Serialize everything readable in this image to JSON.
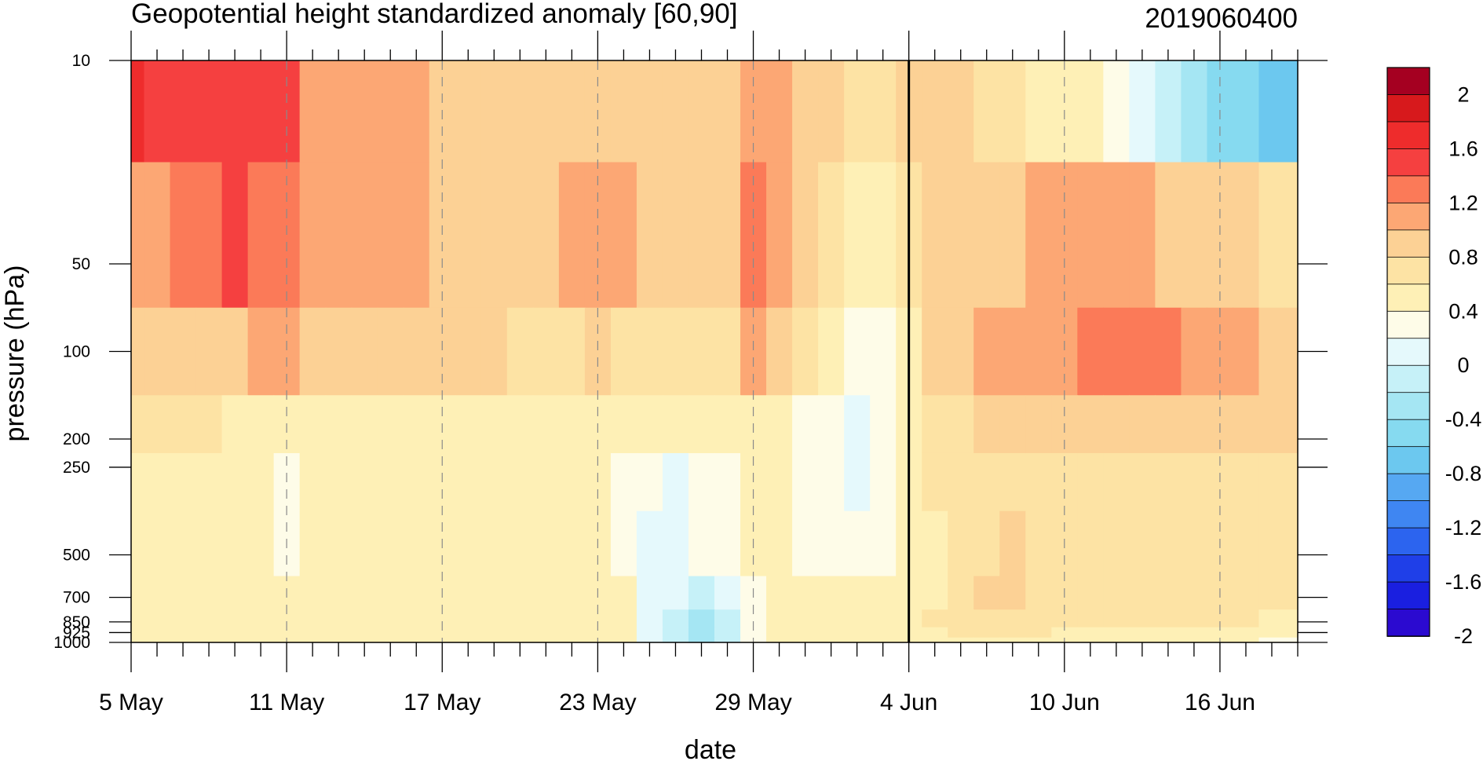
{
  "chart_data": {
    "type": "heatmap",
    "title": "Geopotential height standardized anomaly [60,90]",
    "subtitle": "2019060400",
    "xlabel": "date",
    "ylabel": "pressure (hPa)",
    "x_tick_labels": [
      "5 May",
      "11 May",
      "17 May",
      "23 May",
      "29 May",
      "4 Jun",
      "10 Jun",
      "16 Jun"
    ],
    "x_tick_days": [
      0,
      6,
      12,
      18,
      24,
      30,
      36,
      42
    ],
    "x_range_days": [
      0,
      45
    ],
    "y_levels_hPa": [
      10,
      50,
      100,
      200,
      250,
      500,
      700,
      850,
      925,
      1000
    ],
    "y_tick_labels": [
      "10",
      "50",
      "100",
      "200",
      "250",
      "500",
      "700",
      "850",
      "925",
      "1000"
    ],
    "y_range_hPa": [
      1000,
      10
    ],
    "y_scale": "log",
    "vertical_marker": "4 Jun",
    "dashed_gridlines_at": [
      "11 May",
      "17 May",
      "23 May",
      "29 May",
      "10 Jun",
      "16 Jun"
    ],
    "colorbar": {
      "tick_labels": [
        "2",
        "1.6",
        "1.2",
        "0.8",
        "0.4",
        "0",
        "-0.4",
        "-0.8",
        "-1.2",
        "-1.6",
        "-2"
      ],
      "colors": [
        "#a50021",
        "#d7191c",
        "#ee2c2c",
        "#f54040",
        "#fb7a58",
        "#fca774",
        "#fcd195",
        "#fde3a4",
        "#fef0b6",
        "#fefce8",
        "#e5f9fc",
        "#c6f1f8",
        "#a5e6f3",
        "#86daf0",
        "#6cc8ef",
        "#56a8f2",
        "#3f86f2",
        "#2c64ef",
        "#1f3fe8",
        "#1a1fe0",
        "#2b0ad0"
      ]
    },
    "grid": [
      {
        "level": 10,
        "values": [
          1.8,
          1.5,
          1.5,
          1.5,
          1.5,
          1.5,
          1.5,
          1.2,
          1.2,
          1.2,
          1.2,
          1.2,
          0.9,
          0.9,
          0.9,
          0.9,
          0.9,
          0.9,
          0.9,
          0.9,
          0.9,
          0.9,
          0.9,
          0.9,
          1.2,
          1.2,
          0.9,
          0.9,
          0.7,
          0.7,
          0.9,
          0.9,
          0.9,
          0.7,
          0.7,
          0.5,
          0.5,
          0.5,
          0.3,
          0.1,
          -0.1,
          -0.3,
          -0.4,
          -0.5,
          -0.6,
          -0.7
        ]
      },
      {
        "level": 50,
        "values": [
          1.2,
          1.2,
          1.3,
          1.4,
          1.5,
          1.4,
          1.3,
          1.2,
          1.2,
          1.2,
          1.2,
          1.2,
          1.0,
          0.9,
          0.9,
          0.9,
          0.9,
          1.1,
          1.2,
          1.1,
          0.9,
          0.9,
          0.9,
          0.9,
          1.3,
          1.2,
          0.9,
          0.7,
          0.6,
          0.5,
          0.7,
          0.9,
          0.9,
          0.9,
          1.0,
          1.1,
          1.1,
          1.1,
          1.1,
          1.1,
          1.0,
          1.0,
          0.9,
          0.9,
          0.8,
          0.7
        ]
      },
      {
        "level": 100,
        "values": [
          0.9,
          0.9,
          1.0,
          1.0,
          1.0,
          1.1,
          1.1,
          1.0,
          0.9,
          0.9,
          0.9,
          0.9,
          0.9,
          0.9,
          0.9,
          0.8,
          0.8,
          0.8,
          0.9,
          0.8,
          0.7,
          0.7,
          0.7,
          0.8,
          1.1,
          0.9,
          0.7,
          0.5,
          0.3,
          0.3,
          0.6,
          0.9,
          1.0,
          1.1,
          1.2,
          1.2,
          1.2,
          1.3,
          1.3,
          1.4,
          1.3,
          1.2,
          1.2,
          1.1,
          1.0,
          1.0
        ]
      },
      {
        "level": 200,
        "values": [
          0.7,
          0.7,
          0.7,
          0.7,
          0.6,
          0.6,
          0.6,
          0.6,
          0.6,
          0.6,
          0.6,
          0.6,
          0.6,
          0.6,
          0.6,
          0.6,
          0.6,
          0.6,
          0.6,
          0.5,
          0.5,
          0.5,
          0.5,
          0.5,
          0.6,
          0.6,
          0.4,
          0.3,
          0.2,
          0.3,
          0.5,
          0.7,
          0.8,
          0.9,
          1.0,
          1.0,
          1.0,
          1.0,
          1.0,
          1.0,
          0.9,
          0.9,
          0.9,
          0.9,
          0.9,
          0.9
        ]
      },
      {
        "level": 250,
        "values": [
          0.5,
          0.5,
          0.6,
          0.6,
          0.6,
          0.6,
          0.3,
          0.6,
          0.6,
          0.6,
          0.6,
          0.6,
          0.6,
          0.6,
          0.6,
          0.6,
          0.6,
          0.6,
          0.5,
          0.4,
          0.3,
          0.2,
          0.3,
          0.4,
          0.6,
          0.6,
          0.4,
          0.3,
          0.1,
          0.3,
          0.5,
          0.7,
          0.8,
          0.8,
          0.8,
          0.7,
          0.7,
          0.7,
          0.7,
          0.7,
          0.7,
          0.7,
          0.7,
          0.7,
          0.7,
          0.7
        ]
      },
      {
        "level": 500,
        "values": [
          0.5,
          0.5,
          0.5,
          0.6,
          0.5,
          0.5,
          0.4,
          0.5,
          0.6,
          0.6,
          0.6,
          0.6,
          0.5,
          0.5,
          0.6,
          0.6,
          0.6,
          0.5,
          0.5,
          0.4,
          0.2,
          0.2,
          0.3,
          0.4,
          0.5,
          0.5,
          0.4,
          0.4,
          0.4,
          0.4,
          0.5,
          0.6,
          0.7,
          0.8,
          0.9,
          0.8,
          0.7,
          0.7,
          0.7,
          0.7,
          0.7,
          0.7,
          0.7,
          0.7,
          0.7,
          0.7
        ]
      },
      {
        "level": 700,
        "values": [
          0.5,
          0.5,
          0.6,
          0.6,
          0.5,
          0.5,
          0.6,
          0.6,
          0.6,
          0.6,
          0.6,
          0.6,
          0.6,
          0.6,
          0.6,
          0.6,
          0.6,
          0.5,
          0.6,
          0.6,
          0.2,
          0.1,
          0.0,
          0.1,
          0.3,
          0.5,
          0.5,
          0.5,
          0.5,
          0.5,
          0.6,
          0.6,
          0.8,
          0.9,
          0.9,
          0.8,
          0.7,
          0.7,
          0.7,
          0.7,
          0.7,
          0.7,
          0.7,
          0.7,
          0.7,
          0.7
        ]
      },
      {
        "level": 850,
        "values": [
          0.5,
          0.5,
          0.5,
          0.5,
          0.5,
          0.5,
          0.5,
          0.6,
          0.6,
          0.6,
          0.6,
          0.6,
          0.6,
          0.6,
          0.6,
          0.6,
          0.6,
          0.5,
          0.6,
          0.5,
          0.1,
          -0.1,
          -0.2,
          -0.1,
          0.3,
          0.5,
          0.5,
          0.5,
          0.5,
          0.5,
          0.6,
          0.7,
          0.8,
          0.8,
          0.7,
          0.7,
          0.7,
          0.7,
          0.7,
          0.7,
          0.7,
          0.7,
          0.7,
          0.7,
          0.6,
          0.6
        ]
      },
      {
        "level": 925,
        "values": [
          0.5,
          0.5,
          0.5,
          0.5,
          0.5,
          0.5,
          0.5,
          0.6,
          0.6,
          0.6,
          0.6,
          0.6,
          0.6,
          0.6,
          0.6,
          0.6,
          0.6,
          0.5,
          0.5,
          0.5,
          0.1,
          -0.1,
          -0.2,
          -0.1,
          0.3,
          0.5,
          0.5,
          0.5,
          0.5,
          0.5,
          0.6,
          0.6,
          0.7,
          0.7,
          0.7,
          0.7,
          0.6,
          0.6,
          0.6,
          0.6,
          0.6,
          0.6,
          0.6,
          0.6,
          0.5,
          0.5
        ]
      },
      {
        "level": 1000,
        "values": [
          0.5,
          0.5,
          0.5,
          0.5,
          0.5,
          0.5,
          0.5,
          0.6,
          0.6,
          0.6,
          0.6,
          0.6,
          0.6,
          0.6,
          0.6,
          0.6,
          0.6,
          0.5,
          0.5,
          0.5,
          0.1,
          0.0,
          -0.2,
          -0.1,
          0.3,
          0.5,
          0.5,
          0.5,
          0.5,
          0.5,
          0.6,
          0.6,
          0.6,
          0.6,
          0.6,
          0.6,
          0.5,
          0.5,
          0.5,
          0.5,
          0.5,
          0.5,
          0.5,
          0.5,
          0.4,
          0.4
        ]
      }
    ]
  }
}
